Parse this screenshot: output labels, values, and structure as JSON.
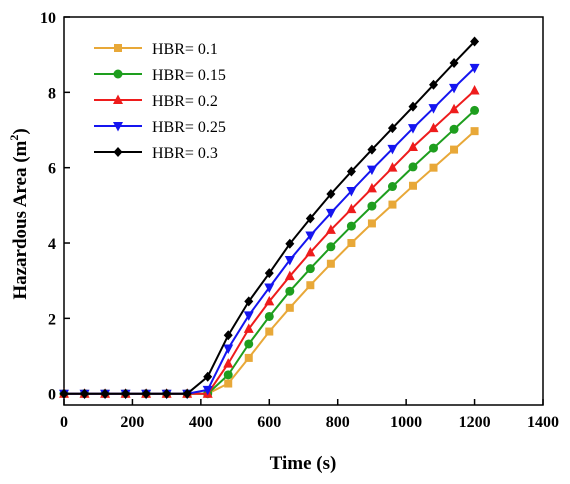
{
  "chart_data": {
    "type": "line",
    "title": "",
    "xlabel": "Time (s)",
    "ylabel": "Hazardous Area (m²)",
    "ylabel_base": "Hazardous Area (m",
    "ylabel_sup": "2",
    "ylabel_close": ")",
    "xlim": [
      0,
      1400
    ],
    "ylim": [
      -0.3,
      10
    ],
    "xticks": [
      0,
      200,
      400,
      600,
      800,
      1000,
      1200,
      1400
    ],
    "yticks": [
      0,
      2,
      4,
      6,
      8,
      10
    ],
    "grid": false,
    "legend_position": "top-left",
    "x": [
      0,
      60,
      120,
      180,
      240,
      300,
      360,
      420,
      480,
      540,
      600,
      660,
      720,
      780,
      840,
      900,
      960,
      1020,
      1080,
      1140,
      1200
    ],
    "series": [
      {
        "name": "HBR= 0.1",
        "color": "#E8A838",
        "marker": "square",
        "values": [
          0,
          0,
          0,
          0,
          0,
          0,
          0,
          0,
          0.27,
          0.95,
          1.65,
          2.28,
          2.88,
          3.45,
          4.0,
          4.52,
          5.02,
          5.52,
          6.0,
          6.48,
          6.97
        ]
      },
      {
        "name": "HBR= 0.15",
        "color": "#1E9E1E",
        "marker": "circle",
        "values": [
          0,
          0,
          0,
          0,
          0,
          0,
          0,
          0,
          0.5,
          1.32,
          2.05,
          2.72,
          3.32,
          3.9,
          4.45,
          4.98,
          5.5,
          6.02,
          6.52,
          7.02,
          7.52
        ]
      },
      {
        "name": "HBR= 0.2",
        "color": "#EE1C1C",
        "marker": "triangle-up",
        "values": [
          0,
          0,
          0,
          0,
          0,
          0,
          0,
          0,
          0.8,
          1.72,
          2.45,
          3.12,
          3.75,
          4.35,
          4.9,
          5.45,
          6.0,
          6.55,
          7.05,
          7.55,
          8.05
        ]
      },
      {
        "name": "HBR= 0.25",
        "color": "#1515F0",
        "marker": "triangle-down",
        "values": [
          0,
          0,
          0,
          0,
          0,
          0,
          0,
          0.1,
          1.2,
          2.08,
          2.82,
          3.55,
          4.2,
          4.8,
          5.38,
          5.95,
          6.5,
          7.05,
          7.58,
          8.12,
          8.65
        ]
      },
      {
        "name": "HBR= 0.3",
        "color": "#000000",
        "marker": "diamond",
        "values": [
          0,
          0,
          0,
          0,
          0,
          0,
          0,
          0.45,
          1.55,
          2.45,
          3.2,
          3.98,
          4.65,
          5.3,
          5.9,
          6.48,
          7.05,
          7.62,
          8.2,
          8.78,
          9.35
        ]
      }
    ]
  }
}
